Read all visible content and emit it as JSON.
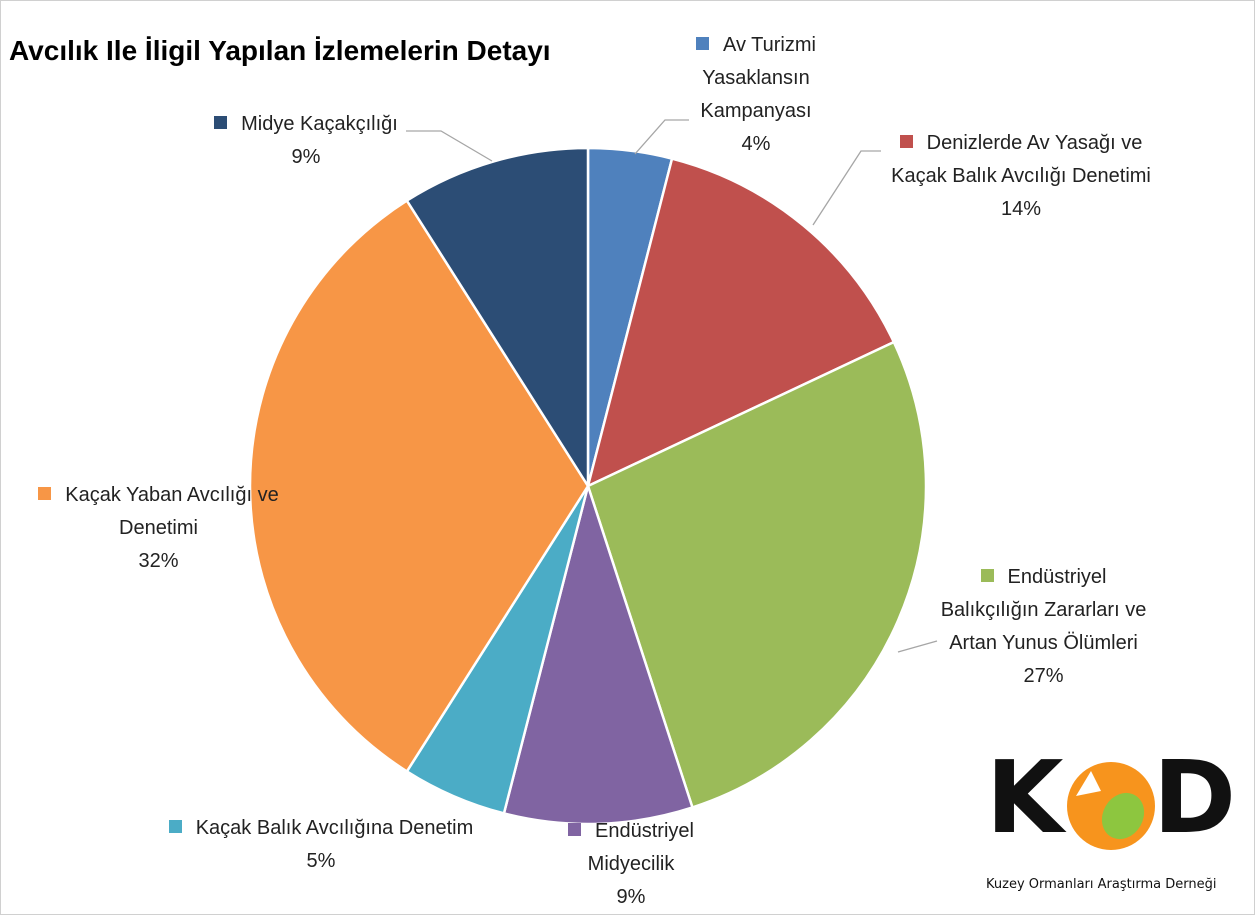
{
  "chart_data": {
    "type": "pie",
    "title": "Avcılık Ile İligil Yapılan İzlemelerin Detayı",
    "categories": [
      "Av Turizmi Yasaklansın Kampanyası",
      "Denizlerde Av Yasağı ve Kaçak Balık Avcılığı Denetimi",
      "Endüstriyel Balıkçılığın Zararları ve Artan Yunus Ölümleri",
      "Endüstriyel Midyecilik",
      "Kaçak Balık Avcılığına Denetim",
      "Kaçak Yaban Avcılığı ve Denetimi",
      "Midye Kaçakçılığı"
    ],
    "values": [
      4,
      14,
      27,
      9,
      5,
      32,
      9
    ],
    "value_labels": [
      "4%",
      "14%",
      "27%",
      "9%",
      "5%",
      "32%",
      "9%"
    ],
    "colors": [
      "#4f81bd",
      "#c0504d",
      "#9bbb59",
      "#8064a2",
      "#4bacc6",
      "#f79646",
      "#2c4d75"
    ]
  },
  "logo": {
    "letters": [
      "K",
      "D"
    ],
    "name": "Kuzey Ormanları Araştırma Derneği"
  }
}
